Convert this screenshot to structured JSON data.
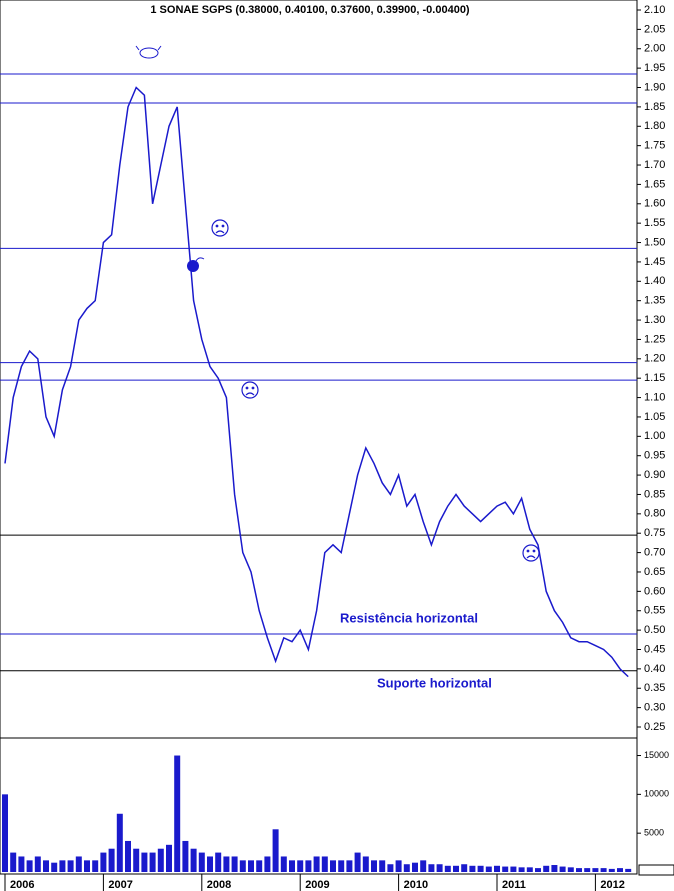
{
  "chart_data": {
    "type": "line",
    "title": "1 SONAE SGPS (0.38000, 0.40100, 0.37600, 0.39900, -0.00400)",
    "annotations": [
      "Resistência horizontal",
      "Suporte horizontal"
    ],
    "categories": [
      "2006",
      null,
      null,
      null,
      null,
      null,
      null,
      null,
      null,
      null,
      null,
      null,
      "2007",
      null,
      null,
      null,
      null,
      null,
      null,
      null,
      null,
      null,
      null,
      null,
      "2008",
      null,
      null,
      null,
      null,
      null,
      null,
      null,
      null,
      null,
      null,
      null,
      "2009",
      null,
      null,
      null,
      null,
      null,
      null,
      null,
      null,
      null,
      null,
      null,
      "2010",
      null,
      null,
      null,
      null,
      null,
      null,
      null,
      null,
      null,
      null,
      null,
      "2011",
      null,
      null,
      null,
      null,
      null,
      null,
      null,
      null,
      null,
      null,
      null,
      "2012",
      null,
      null,
      null,
      null
    ],
    "series": [
      {
        "name": "SONAE SGPS",
        "color": "#1a1acc",
        "values": [
          0.93,
          1.1,
          1.18,
          1.22,
          1.2,
          1.05,
          1.0,
          1.12,
          1.18,
          1.3,
          1.33,
          1.35,
          1.5,
          1.52,
          1.7,
          1.85,
          1.9,
          1.88,
          1.6,
          1.7,
          1.8,
          1.85,
          1.6,
          1.35,
          1.25,
          1.18,
          1.15,
          1.1,
          0.85,
          0.7,
          0.65,
          0.55,
          0.48,
          0.42,
          0.48,
          0.47,
          0.5,
          0.45,
          0.55,
          0.7,
          0.72,
          0.7,
          0.8,
          0.9,
          0.97,
          0.93,
          0.88,
          0.85,
          0.9,
          0.82,
          0.85,
          0.78,
          0.72,
          0.78,
          0.82,
          0.85,
          0.82,
          0.8,
          0.78,
          0.8,
          0.82,
          0.83,
          0.8,
          0.84,
          0.76,
          0.72,
          0.6,
          0.55,
          0.52,
          0.48,
          0.47,
          0.47,
          0.46,
          0.45,
          0.43,
          0.4,
          0.38
        ]
      },
      {
        "name": "Volume",
        "color": "#1a1acc",
        "panel": "volume",
        "values": [
          10000,
          2500,
          2000,
          1500,
          2000,
          1500,
          1200,
          1500,
          1500,
          2000,
          1500,
          1500,
          2500,
          3000,
          7500,
          4000,
          3000,
          2500,
          2500,
          3000,
          3500,
          15000,
          4000,
          3000,
          2500,
          2000,
          2500,
          2000,
          2000,
          1500,
          1500,
          1500,
          2000,
          5500,
          2000,
          1500,
          1500,
          1500,
          2000,
          2000,
          1500,
          1500,
          1500,
          2500,
          2000,
          1500,
          1500,
          1000,
          1500,
          1000,
          1200,
          1500,
          1000,
          1000,
          800,
          800,
          1000,
          800,
          800,
          700,
          800,
          700,
          700,
          600,
          600,
          500,
          800,
          900,
          700,
          600,
          500,
          500,
          500,
          500,
          400,
          500,
          400
        ]
      }
    ],
    "ylim": [
      0.25,
      2.1
    ],
    "yticks": [
      {
        "value": 2.1,
        "label": "2.10"
      },
      2.05,
      {
        "value": 2.0,
        "label": "2.00"
      },
      1.95,
      {
        "value": 1.9,
        "label": "1.90"
      },
      1.85,
      {
        "value": 1.8,
        "label": "1.80"
      },
      1.75,
      {
        "value": 1.7,
        "label": "1.70"
      },
      1.65,
      {
        "value": 1.6,
        "label": "1.60"
      },
      1.55,
      {
        "value": 1.5,
        "label": "1.50"
      },
      1.45,
      {
        "value": 1.4,
        "label": "1.40"
      },
      1.35,
      {
        "value": 1.3,
        "label": "1.30"
      },
      1.25,
      {
        "value": 1.2,
        "label": "1.20"
      },
      1.15,
      {
        "value": 1.1,
        "label": "1.10"
      },
      1.05,
      {
        "value": 1.0,
        "label": "1.00"
      },
      0.95,
      {
        "value": 0.9,
        "label": "0.90"
      },
      0.85,
      {
        "value": 0.8,
        "label": "0.80"
      },
      0.75,
      {
        "value": 0.7,
        "label": "0.70"
      },
      0.65,
      {
        "value": 0.6,
        "label": "0.60"
      },
      0.55,
      {
        "value": 0.5,
        "label": "0.50"
      },
      0.45,
      {
        "value": 0.4,
        "label": "0.40"
      },
      0.35,
      {
        "value": 0.3,
        "label": "0.30"
      },
      0.25
    ],
    "y2lim": [
      0,
      17000
    ],
    "y2ticks": [
      5000,
      10000,
      15000
    ],
    "levels": [
      {
        "value": 1.935,
        "color": "#1a1acc"
      },
      {
        "value": 1.86,
        "color": "#1a1acc"
      },
      {
        "value": 1.485,
        "color": "#1a1acc"
      },
      {
        "value": 1.19,
        "color": "#1a1acc"
      },
      {
        "value": 1.145,
        "color": "#1a1acc"
      },
      {
        "value": 0.745,
        "color": "#000000"
      },
      {
        "value": 0.49,
        "color": "#1a1acc"
      },
      {
        "value": 0.395,
        "color": "#000000"
      }
    ]
  }
}
